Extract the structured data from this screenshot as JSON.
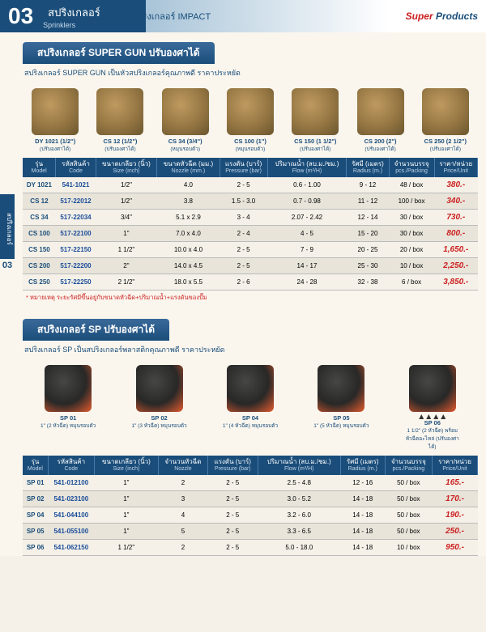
{
  "header": {
    "number": "03",
    "thai": "สปริงเกลอร์",
    "en": "Sprinklers",
    "sub": "สปริงเกลอร์ IMPACT",
    "logo_super": "Super",
    "logo_products": "Products"
  },
  "sidetab": "สปริงเกลอร์",
  "sidenum": "03",
  "section1": {
    "title": "สปริงเกลอร์ SUPER GUN ปรับองศาได้",
    "sub": "สปริงเกลอร์ SUPER GUN เป็นหัวสปริงเกลอร์คุณภาพดี ราคาประหยัด",
    "products": [
      {
        "name": "DY 1021 (1/2\")",
        "desc": "(ปรับองศาได้)"
      },
      {
        "name": "CS 12 (1/2\")",
        "desc": "(ปรับองศาได้)"
      },
      {
        "name": "CS 34 (3/4\")",
        "desc": "(หมุนรอบตัว)"
      },
      {
        "name": "CS 100 (1\")",
        "desc": "(หมุนรอบตัว)"
      },
      {
        "name": "CS 150 (1 1/2\")",
        "desc": "(ปรับองศาได้)"
      },
      {
        "name": "CS 200 (2\")",
        "desc": "(ปรับองศาได้)"
      },
      {
        "name": "CS 250 (2 1/2\")",
        "desc": "(ปรับองศาได้)"
      }
    ],
    "columns": [
      {
        "th": "รุ่น",
        "en": "Model"
      },
      {
        "th": "รหัสสินค้า",
        "en": "Code"
      },
      {
        "th": "ขนาดเกลียว (นิ้ว)",
        "en": "Size (inch)"
      },
      {
        "th": "ขนาดหัวฉีด (มม.)",
        "en": "Nozzle (mm.)"
      },
      {
        "th": "แรงดัน (บาร์)",
        "en": "Pressure (bar)"
      },
      {
        "th": "ปริมาณน้ำ (ลบ.ม./ชม.)",
        "en": "Flow (m³/H)"
      },
      {
        "th": "รัศมี (เมตร)",
        "en": "Radius (m.)"
      },
      {
        "th": "จำนวนบรรจุ",
        "en": "pcs./Packing"
      },
      {
        "th": "ราคา/หน่วย",
        "en": "Price/Unit"
      }
    ],
    "rows": [
      [
        "DY 1021",
        "541-1021",
        "1/2\"",
        "4.0",
        "2 - 5",
        "0.6 - 1.00",
        "9 - 12",
        "48 / box",
        "380.-"
      ],
      [
        "CS 12",
        "517-22012",
        "1/2\"",
        "3.8",
        "1.5 - 3.0",
        "0.7 - 0.98",
        "11 - 12",
        "100 / box",
        "340.-"
      ],
      [
        "CS 34",
        "517-22034",
        "3/4\"",
        "5.1 x 2.9",
        "3 - 4",
        "2.07 - 2.42",
        "12 - 14",
        "30 / box",
        "730.-"
      ],
      [
        "CS 100",
        "517-22100",
        "1\"",
        "7.0 x 4.0",
        "2 - 4",
        "4 - 5",
        "15 - 20",
        "30 / box",
        "800.-"
      ],
      [
        "CS 150",
        "517-22150",
        "1 1/2\"",
        "10.0 x 4.0",
        "2 - 5",
        "7 - 9",
        "20 - 25",
        "20 / box",
        "1,650.-"
      ],
      [
        "CS 200",
        "517-22200",
        "2\"",
        "14.0 x 4.5",
        "2 - 5",
        "14 - 17",
        "25 - 30",
        "10 / box",
        "2,250.-"
      ],
      [
        "CS 250",
        "517-22250",
        "2 1/2\"",
        "18.0 x 5.5",
        "2 - 6",
        "24 - 28",
        "32 - 38",
        "6 / box",
        "3,850.-"
      ]
    ],
    "footnote": "* หมายเหตุ ระยะรัศมีขึ้นอยู่กับขนาดหัวฉีด+ปริมาณน้ำ+แรงดันของปั๊ม"
  },
  "section2": {
    "title": "สปริงเกลอร์ SP ปรับองศาได้",
    "sub": "สปริงเกลอร์ SP เป็นสปริงเกลอร์พลาสติกคุณภาพดี ราคาประหยัด",
    "products": [
      {
        "name": "SP 01",
        "desc": "1\" (2 หัวฉีด) หมุนรอบตัว"
      },
      {
        "name": "SP 02",
        "desc": "1\" (3 หัวฉีด) หมุนรอบตัว"
      },
      {
        "name": "SP 04",
        "desc": "1\" (4 หัวฉีด) หมุนรอบตัว"
      },
      {
        "name": "SP 05",
        "desc": "1\" (5 หัวฉีด) หมุนรอบตัว"
      },
      {
        "name": "SP 06",
        "desc": "1 1/2\" (2 หัวฉีด) พร้อมหัวฉีดอะไหล่ (ปรับองศาได้)",
        "nozzles": true
      }
    ],
    "columns": [
      {
        "th": "รุ่น",
        "en": "Model"
      },
      {
        "th": "รหัสสินค้า",
        "en": "Code"
      },
      {
        "th": "ขนาดเกลียว (นิ้ว)",
        "en": "Size (inch)"
      },
      {
        "th": "จำนวนหัวฉีด",
        "en": "Nozzle"
      },
      {
        "th": "แรงดัน (บาร์)",
        "en": "Pressure (bar)"
      },
      {
        "th": "ปริมาณน้ำ (ลบ.ม./ชม.)",
        "en": "Flow (m³/H)"
      },
      {
        "th": "รัศมี (เมตร)",
        "en": "Radius (m.)"
      },
      {
        "th": "จำนวนบรรจุ",
        "en": "pcs./Packing"
      },
      {
        "th": "ราคา/หน่วย",
        "en": "Price/Unit"
      }
    ],
    "rows": [
      [
        "SP 01",
        "541-012100",
        "1\"",
        "2",
        "2 - 5",
        "2.5 - 4.8",
        "12 - 16",
        "50 / box",
        "165.-"
      ],
      [
        "SP 02",
        "541-023100",
        "1\"",
        "3",
        "2 - 5",
        "3.0 - 5.2",
        "14 - 18",
        "50 / box",
        "170.-"
      ],
      [
        "SP 04",
        "541-044100",
        "1\"",
        "4",
        "2 - 5",
        "3.2 - 6.0",
        "14 - 18",
        "50 / box",
        "190.-"
      ],
      [
        "SP 05",
        "541-055100",
        "1\"",
        "5",
        "2 - 5",
        "3.3 - 6.5",
        "14 - 18",
        "50 / box",
        "250.-"
      ],
      [
        "SP 06",
        "541-062150",
        "1 1/2\"",
        "2",
        "2 - 5",
        "5.0 - 18.0",
        "14 - 18",
        "10 / box",
        "950.-"
      ]
    ]
  }
}
